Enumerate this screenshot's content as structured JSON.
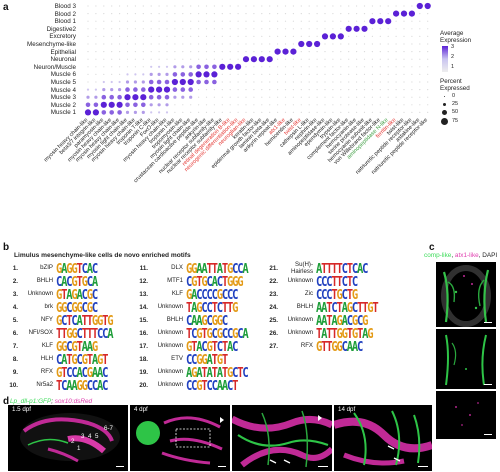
{
  "panel_a": {
    "letter": "a",
    "rows": [
      "Blood 3",
      "Blood 2",
      "Blood 1",
      "Digestive2",
      "Excretory",
      "Mesenchyme-like",
      "Epithelial",
      "Neuronal",
      "Neuron/Muscle",
      "Muscle 6",
      "Muscle 5",
      "Muscle 4",
      "Muscle 3",
      "Muscle 2",
      "Muscle 1"
    ],
    "columns": [
      {
        "label": "myosin heavy chain-like",
        "color": "#222222"
      },
      {
        "label": "beta3/7 integrin-like",
        "color": "#222222"
      },
      {
        "label": "paramyosin-like",
        "color": "#222222"
      },
      {
        "label": "myosin heavy chain-like",
        "color": "#222222"
      },
      {
        "label": "myosin heavy chain-like",
        "color": "#222222"
      },
      {
        "label": "myosin light chain-like",
        "color": "#222222"
      },
      {
        "label": "myosin heavy chain-like",
        "color": "#222222"
      },
      {
        "label": "troponin T-like",
        "color": "#222222"
      },
      {
        "label": "troponin C-like",
        "color": "#222222"
      },
      {
        "label": "FoxO-like",
        "color": "#222222"
      },
      {
        "label": "myosin heavy chain-like",
        "color": "#222222"
      },
      {
        "label": "troponin I-like",
        "color": "#222222"
      },
      {
        "label": "tropomyosin-like",
        "color": "#222222"
      },
      {
        "label": "myosin light chain-like",
        "color": "#222222"
      },
      {
        "label": "crustacean cardioactive peptide-like",
        "color": "#222222"
      },
      {
        "label": "ankyrin-like",
        "color": "#222222"
      },
      {
        "label": "nuclear receptor subfamily-like",
        "color": "#222222"
      },
      {
        "label": "nuclear receptor subfamily-like",
        "color": "#222222"
      },
      {
        "label": "retinal degeneration B-like",
        "color": "#e53935"
      },
      {
        "label": "neurogenic differentiation-like",
        "color": "#e53935"
      },
      {
        "label": "neuroglian-like",
        "color": "#e53935"
      },
      {
        "label": "keratin-like",
        "color": "#222222"
      },
      {
        "label": "epidermal growth factor-like",
        "color": "#222222"
      },
      {
        "label": "laminin beta-like",
        "color": "#222222"
      },
      {
        "label": "ankyrin repeat-like",
        "color": "#222222"
      },
      {
        "label": "atx1-like",
        "color": "#e53935"
      },
      {
        "label": "hemicentin-like",
        "color": "#222222"
      },
      {
        "label": "twist-like",
        "color": "#e53935"
      },
      {
        "label": "cathepsin L-like",
        "color": "#222222"
      },
      {
        "label": "nephrin-like",
        "color": "#222222"
      },
      {
        "label": "aminopeptidase-like",
        "color": "#222222"
      },
      {
        "label": "ependymin-like",
        "color": "#222222"
      },
      {
        "label": "trypsin-like",
        "color": "#222222"
      },
      {
        "label": "complement factor-like",
        "color": "#222222"
      },
      {
        "label": "hemocyanin-like",
        "color": "#222222"
      },
      {
        "label": "serine protease-like",
        "color": "#222222"
      },
      {
        "label": "hemocyanin subunit-like",
        "color": "#222222"
      },
      {
        "label": "von Willebrand factor-like",
        "color": "#222222"
      },
      {
        "label": "aminopeptidase N-like",
        "color": "#43a047"
      },
      {
        "label": "ferritin-like",
        "color": "#e53935"
      },
      {
        "label": "twist-like",
        "color": "#222222"
      },
      {
        "label": "natriuretic peptide receptor-like",
        "color": "#222222"
      },
      {
        "label": "astakine-like",
        "color": "#222222"
      },
      {
        "label": "natriuretic peptide receptor-like",
        "color": "#222222"
      }
    ],
    "legend": {
      "avg_title": "Average Expression",
      "avg_ticks": [
        "3",
        "2",
        "1"
      ],
      "pct_title": "Percent Expressed",
      "pct_ticks": [
        "0",
        "25",
        "50",
        "75"
      ]
    }
  },
  "panel_b": {
    "letter": "b",
    "title": "Limulus mesenchyme-like cells de novo enriched motifs",
    "motifs": [
      {
        "n": "1.",
        "name": "bZIP",
        "seq": "GAGGTCAC"
      },
      {
        "n": "2.",
        "name": "BHLH",
        "seq": "CACGTGCA"
      },
      {
        "n": "3.",
        "name": "Unknown",
        "seq": "GTAGACGC"
      },
      {
        "n": "4.",
        "name": "brk",
        "seq": "GGCGGCGC"
      },
      {
        "n": "5.",
        "name": "NFY",
        "seq": "GCTCATTGGTG"
      },
      {
        "n": "6.",
        "name": "NFI/SOX",
        "seq": "TTGGCTTTCCA"
      },
      {
        "n": "7.",
        "name": "KLF",
        "seq": "GGCGTAAG"
      },
      {
        "n": "8.",
        "name": "HLH",
        "seq": "CATGCGTAGT"
      },
      {
        "n": "9.",
        "name": "RFX",
        "seq": "GTCCACGAAC"
      },
      {
        "n": "10.",
        "name": "Nr5a2",
        "seq": "TCAAGGCCAC"
      },
      {
        "n": "11.",
        "name": "DLX",
        "seq": "GGAATTATGCCA"
      },
      {
        "n": "12.",
        "name": "MTF1",
        "seq": "CGTGCACTGGG"
      },
      {
        "n": "13.",
        "name": "KLF",
        "seq": "GACCCCGCCC"
      },
      {
        "n": "14.",
        "name": "Unknown",
        "seq": "TAGCCTCTTG"
      },
      {
        "n": "15.",
        "name": "BHLH",
        "seq": "CAAGCGGC"
      },
      {
        "n": "16.",
        "name": "Unknown",
        "seq": "TCGTGCGCCGCA"
      },
      {
        "n": "17.",
        "name": "Unknown",
        "seq": "GTACGTCTAC"
      },
      {
        "n": "18.",
        "name": "ETV",
        "seq": "CCGGATGT"
      },
      {
        "n": "19.",
        "name": "Unknown",
        "seq": "AGATATATGCTC"
      },
      {
        "n": "20.",
        "name": "Unknown",
        "seq": "CCGTCCAACT"
      },
      {
        "n": "21.",
        "name": "Su(H)-Hairless",
        "seq": "ATTTTCTCAC"
      },
      {
        "n": "22.",
        "name": "Unknown",
        "seq": "CCCTTCTC"
      },
      {
        "n": "23.",
        "name": "Zic",
        "seq": "CCCTGCTG"
      },
      {
        "n": "24.",
        "name": "BHLH",
        "seq": "AATCTAGCTTGT"
      },
      {
        "n": "25.",
        "name": "Unknown",
        "seq": "AATAGACGCG"
      },
      {
        "n": "26.",
        "name": "Unknown",
        "seq": "TATTGGTGTAG"
      },
      {
        "n": "27.",
        "name": "RFX",
        "seq": "GTTGGCAAC"
      }
    ]
  },
  "panel_c": {
    "letter": "c",
    "legend_parts": [
      {
        "text": "comp-like",
        "color": "#3ddc5a"
      },
      {
        "text": ", ",
        "color": "#222222"
      },
      {
        "text": "atx1-like",
        "color": "#e040b0"
      },
      {
        "text": ", DAPI",
        "color": "#222222"
      }
    ]
  },
  "panel_d": {
    "letter": "d",
    "legend_parts": [
      {
        "text": "Lp_dll-p1:GFP",
        "color": "#3ddc5a"
      },
      {
        "text": "; ",
        "color": "#222222"
      },
      {
        "text": "sox10:dsRed",
        "color": "#e040b0"
      }
    ],
    "stage1": "1.5 dpf",
    "stage2": "4 dpf",
    "stage3": "14 dpf",
    "arch_numbers": [
      "1",
      "2",
      "3",
      "4",
      "5",
      "6-7"
    ]
  }
}
